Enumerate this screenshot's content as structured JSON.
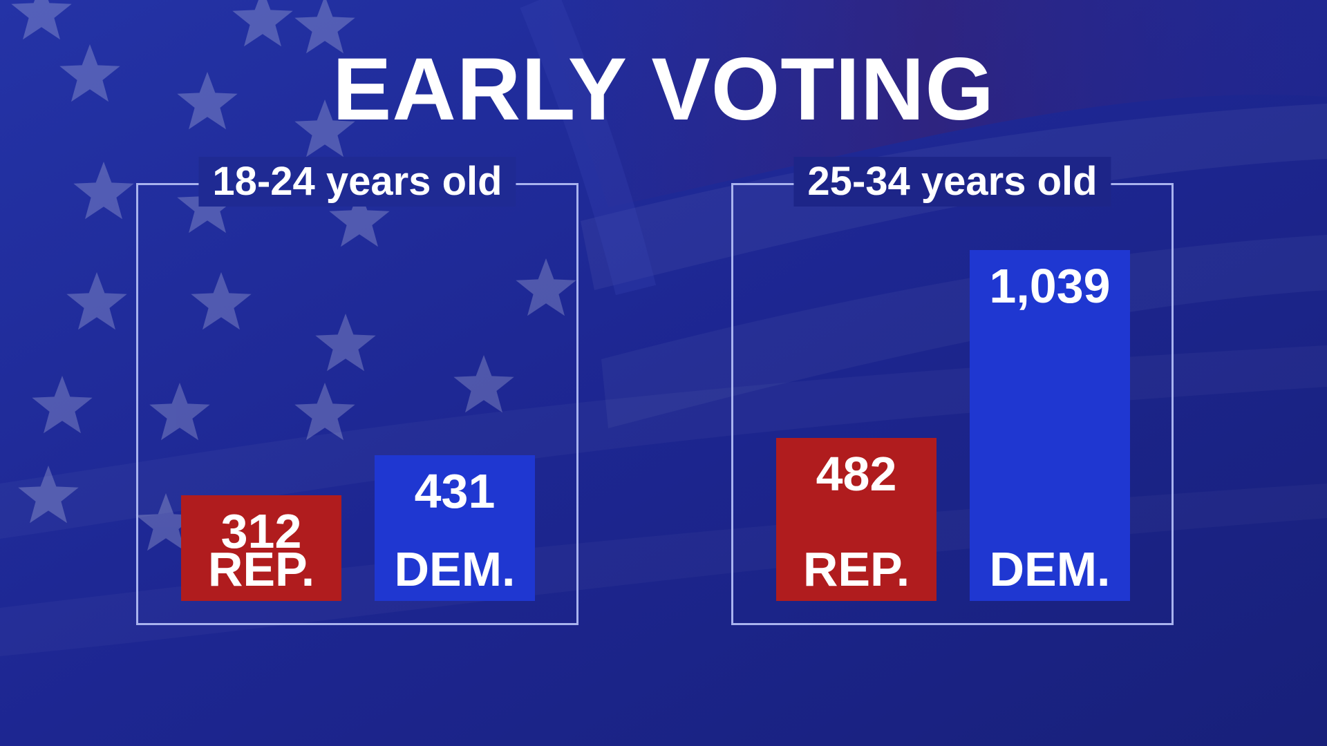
{
  "title": "EARLY VOTING",
  "colors": {
    "background": "#1c2490",
    "rep": "#b01c1e",
    "dem": "#1f37d1",
    "frame": "#a9b3ee",
    "text": "#ffffff"
  },
  "background_icons": [
    "star-icon",
    "flag-stripe"
  ],
  "chart_data": [
    {
      "type": "bar",
      "title": "18-24 years old",
      "categories": [
        "REP.",
        "DEM."
      ],
      "values": [
        312,
        431
      ],
      "value_labels": [
        "312",
        "431"
      ],
      "bar_colors": [
        "#b01c1e",
        "#1f37d1"
      ],
      "grid": false,
      "axes_visible": false
    },
    {
      "type": "bar",
      "title": "25-34 years old",
      "categories": [
        "REP.",
        "DEM."
      ],
      "values": [
        482,
        1039
      ],
      "value_labels": [
        "482",
        "1,039"
      ],
      "bar_colors": [
        "#b01c1e",
        "#1f37d1"
      ],
      "grid": false,
      "axes_visible": false
    }
  ]
}
